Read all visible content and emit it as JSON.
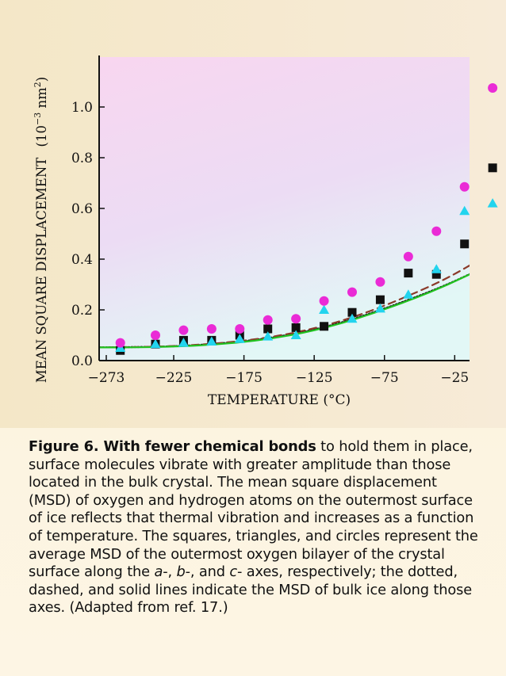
{
  "chart_data": {
    "type": "scatter",
    "xlabel": "TEMPERATURE (°C)",
    "ylabel_main": "MEAN SQUARE DISPLACEMENT",
    "ylabel_unit": "(10",
    "ylabel_exp": "−3",
    "ylabel_unit2": " nm",
    "ylabel_sq": "2",
    "ylabel_close": ")",
    "xlim": [
      -273,
      0
    ],
    "ylim": [
      0,
      1.2
    ],
    "xticks": [
      -273,
      -225,
      -175,
      -125,
      -75,
      -25
    ],
    "xtick_labels": [
      "−273",
      "−225",
      "−175",
      "−125",
      "−75",
      "−25"
    ],
    "yticks": [
      0,
      0.2,
      0.4,
      0.6,
      0.8,
      1.0
    ],
    "ytick_labels": [
      "0.0",
      "0.2",
      "0.4",
      "0.6",
      "0.8",
      "1.0"
    ],
    "grid": false,
    "series": [
      {
        "marker": "square",
        "color": "#111111",
        "points": [
          [
            -263,
            0.04
          ],
          [
            -238,
            0.065
          ],
          [
            -218,
            0.08
          ],
          [
            -198,
            0.08
          ],
          [
            -178,
            0.1
          ],
          [
            -158,
            0.125
          ],
          [
            -138,
            0.13
          ],
          [
            -118,
            0.135
          ],
          [
            -98,
            0.19
          ],
          [
            -78,
            0.24
          ],
          [
            -58,
            0.345
          ],
          [
            -38,
            0.34
          ],
          [
            -18,
            0.46
          ],
          [
            2,
            0.76
          ]
        ]
      },
      {
        "marker": "triangle",
        "color": "#22d4ee",
        "points": [
          [
            -263,
            0.05
          ],
          [
            -238,
            0.065
          ],
          [
            -218,
            0.07
          ],
          [
            -198,
            0.075
          ],
          [
            -178,
            0.085
          ],
          [
            -158,
            0.095
          ],
          [
            -138,
            0.1
          ],
          [
            -118,
            0.2
          ],
          [
            -98,
            0.165
          ],
          [
            -78,
            0.205
          ],
          [
            -58,
            0.26
          ],
          [
            -38,
            0.36
          ],
          [
            -18,
            0.59
          ],
          [
            2,
            0.62
          ]
        ]
      },
      {
        "marker": "circle",
        "color": "#ea2bd6",
        "points": [
          [
            -263,
            0.07
          ],
          [
            -238,
            0.1
          ],
          [
            -218,
            0.12
          ],
          [
            -198,
            0.125
          ],
          [
            -178,
            0.125
          ],
          [
            -158,
            0.16
          ],
          [
            -138,
            0.165
          ],
          [
            -118,
            0.235
          ],
          [
            -98,
            0.27
          ],
          [
            -78,
            0.31
          ],
          [
            -58,
            0.41
          ],
          [
            -38,
            0.51
          ],
          [
            -18,
            0.685
          ],
          [
            2,
            1.075
          ]
        ]
      }
    ],
    "lines": [
      {
        "style": "dotted",
        "color": "#111111",
        "x": [
          -280,
          -255,
          -230,
          -205,
          -180,
          -155,
          -130,
          -105,
          -80,
          -55,
          -30,
          -5,
          8
        ],
        "y": [
          0.052,
          0.053,
          0.055,
          0.062,
          0.073,
          0.09,
          0.115,
          0.15,
          0.195,
          0.245,
          0.3,
          0.365,
          0.4
        ]
      },
      {
        "style": "dashed",
        "color": "#8b3a2a",
        "x": [
          -280,
          -255,
          -230,
          -205,
          -180,
          -155,
          -130,
          -105,
          -80,
          -55,
          -30,
          -5,
          8
        ],
        "y": [
          0.052,
          0.053,
          0.056,
          0.063,
          0.075,
          0.093,
          0.12,
          0.157,
          0.205,
          0.262,
          0.325,
          0.405,
          0.455
        ]
      },
      {
        "style": "solid",
        "color": "#22c421",
        "x": [
          -280,
          -255,
          -230,
          -205,
          -180,
          -155,
          -130,
          -105,
          -80,
          -55,
          -30,
          -5,
          8
        ],
        "y": [
          0.052,
          0.052,
          0.054,
          0.06,
          0.07,
          0.087,
          0.112,
          0.147,
          0.192,
          0.242,
          0.298,
          0.365,
          0.405
        ]
      }
    ]
  },
  "caption": {
    "bold": "Figure 6. With fewer chemical bonds",
    "t1": " to hold them in place, surface molecules vibrate with greater amplitude than those located in the bulk crystal. The mean square displacement (MSD) of oxygen and hydrogen atoms on the outermost surface of ice reflects that thermal vibration and increases as a function of temperature. The squares, triangles, and circles represent the average MSD of the outermost oxygen bilayer of the crystal surface along the ",
    "ax_a": "a",
    "t2": "-, ",
    "ax_b": "b",
    "t3": "-, and ",
    "ax_c": "c",
    "t4": "- axes, respectively; the dotted, dashed, and solid lines indicate the MSD of bulk ice along those axes. (Adapted from ref. 17.)"
  },
  "colors": {
    "plot_bg_top": "#f8d6f0",
    "plot_bg_bottom": "#e6f6f6",
    "page_bg": "#fbf1d5"
  }
}
